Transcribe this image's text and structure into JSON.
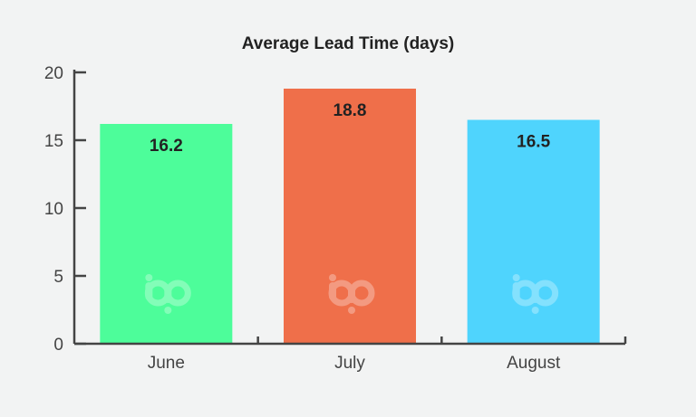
{
  "chart_data": {
    "type": "bar",
    "title": "Average Lead Time (days)",
    "categories": [
      "June",
      "July",
      "August"
    ],
    "values": [
      16.2,
      18.8,
      16.5
    ],
    "value_labels": [
      "16.2",
      "18.8",
      "16.5"
    ],
    "bar_colors": [
      "#4dfd9a",
      "#ef6f4a",
      "#4fd4fd"
    ],
    "ylim": [
      0,
      20
    ],
    "yticks": [
      0,
      5,
      10,
      15,
      20
    ],
    "ytick_labels": [
      "0",
      "5",
      "10",
      "15",
      "20"
    ],
    "xlabel": "",
    "ylabel": "",
    "grid": false,
    "watermark_text": "bp"
  },
  "colors": {
    "axis": "#444444",
    "background": "#f2f3f3",
    "watermark": "#ffffff"
  },
  "icons": [
    "bp-logo-icon"
  ]
}
